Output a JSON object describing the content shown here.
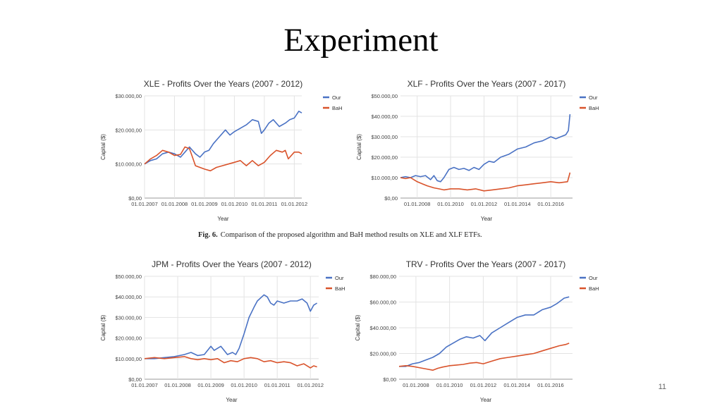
{
  "slide": {
    "title": "Experiment",
    "caption_label": "Fig. 6.",
    "caption_text": "Comparison of the proposed algorithm and BaH method results on XLE and XLF ETFs.",
    "page_number": "11"
  },
  "colors": {
    "our": "#4a72c4",
    "bah": "#d9532b",
    "grid": "#e3e3e3"
  },
  "chart_data": [
    {
      "type": "line",
      "title": "XLE - Profits Over the Years  (2007 - 2012)",
      "xlabel": "Year",
      "ylabel": "Capital ($)",
      "ylim": [
        0,
        30000
      ],
      "yticks": [
        "$0,00",
        "$10.000,00",
        "$20.000,00",
        "$30.000,00"
      ],
      "xlim": [
        2007.0,
        2012.25
      ],
      "xticks": [
        "01.01.2007",
        "01.01.2008",
        "01.01.2009",
        "01.01.2010",
        "01.01.2011",
        "01.01.2012"
      ],
      "grid": true,
      "legend": "top-right",
      "series": [
        {
          "name": "Our",
          "color": "#4a72c4",
          "x": [
            2007.0,
            2007.2,
            2007.4,
            2007.6,
            2007.8,
            2008.0,
            2008.2,
            2008.35,
            2008.5,
            2008.7,
            2008.85,
            2009.0,
            2009.15,
            2009.3,
            2009.5,
            2009.7,
            2009.85,
            2010.0,
            2010.2,
            2010.4,
            2010.6,
            2010.8,
            2010.9,
            2011.0,
            2011.15,
            2011.3,
            2011.5,
            2011.7,
            2011.85,
            2012.0,
            2012.15,
            2012.25
          ],
          "y": [
            10000,
            11000,
            11500,
            13000,
            13500,
            13000,
            12000,
            13500,
            15000,
            13000,
            12000,
            13500,
            14000,
            16000,
            18000,
            20000,
            18500,
            19500,
            20500,
            21500,
            23000,
            22500,
            19000,
            20000,
            22000,
            23000,
            21000,
            22000,
            23000,
            23500,
            25500,
            25000
          ]
        },
        {
          "name": "BaH",
          "color": "#d9532b",
          "x": [
            2007.0,
            2007.2,
            2007.4,
            2007.6,
            2007.8,
            2008.0,
            2008.2,
            2008.35,
            2008.5,
            2008.6,
            2008.7,
            2008.85,
            2009.0,
            2009.2,
            2009.4,
            2009.6,
            2009.8,
            2010.0,
            2010.2,
            2010.4,
            2010.6,
            2010.8,
            2011.0,
            2011.2,
            2011.4,
            2011.6,
            2011.7,
            2011.8,
            2012.0,
            2012.15,
            2012.25
          ],
          "y": [
            10000,
            11500,
            12500,
            14000,
            13500,
            12500,
            12800,
            15000,
            14500,
            12000,
            9500,
            9000,
            8500,
            8000,
            9000,
            9500,
            10000,
            10500,
            11000,
            9500,
            11000,
            9500,
            10500,
            12500,
            14000,
            13500,
            14000,
            11500,
            13500,
            13500,
            13000
          ]
        }
      ]
    },
    {
      "type": "line",
      "title": "XLF - Profits Over the Years  (2007 - 2017)",
      "xlabel": "Year",
      "ylabel": "Capital ($)",
      "ylim": [
        0,
        50000
      ],
      "yticks": [
        "$0,00",
        "$10.000,00",
        "$20.000,00",
        "$30.000,00",
        "$40.000,00",
        "$50.000,00"
      ],
      "xlim": [
        2007.0,
        2017.3
      ],
      "xticks": [
        "01.01.2008",
        "01.01.2010",
        "01.01.2012",
        "01.01.2014",
        "01.01.2016"
      ],
      "grid": true,
      "legend": "top-right",
      "series": [
        {
          "name": "Our",
          "color": "#4a72c4",
          "x": [
            2007.0,
            2007.3,
            2007.6,
            2007.9,
            2008.2,
            2008.5,
            2008.8,
            2009.0,
            2009.2,
            2009.4,
            2009.6,
            2009.9,
            2010.2,
            2010.5,
            2010.8,
            2011.1,
            2011.4,
            2011.7,
            2012.0,
            2012.3,
            2012.6,
            2013.0,
            2013.5,
            2014.0,
            2014.5,
            2015.0,
            2015.5,
            2016.0,
            2016.3,
            2016.6,
            2016.9,
            2017.05,
            2017.15
          ],
          "y": [
            10000,
            10500,
            10000,
            11000,
            10500,
            11000,
            9000,
            11000,
            8500,
            8000,
            10000,
            14000,
            15000,
            14000,
            14500,
            13500,
            15000,
            14000,
            16500,
            18000,
            17500,
            20000,
            21500,
            24000,
            25000,
            27000,
            28000,
            30000,
            29000,
            30000,
            31000,
            33000,
            41000
          ]
        },
        {
          "name": "BaH",
          "color": "#d9532b",
          "x": [
            2007.0,
            2007.3,
            2007.6,
            2008.0,
            2008.3,
            2008.6,
            2009.0,
            2009.3,
            2009.6,
            2010.0,
            2010.5,
            2011.0,
            2011.5,
            2012.0,
            2012.5,
            2013.0,
            2013.5,
            2014.0,
            2014.5,
            2015.0,
            2015.5,
            2016.0,
            2016.5,
            2017.0,
            2017.1,
            2017.15
          ],
          "y": [
            10000,
            9500,
            10000,
            8000,
            7000,
            6000,
            5000,
            4500,
            4000,
            4500,
            4500,
            4000,
            4500,
            3500,
            4000,
            4500,
            5000,
            6000,
            6500,
            7000,
            7500,
            8000,
            7500,
            8000,
            11000,
            12500
          ]
        }
      ]
    },
    {
      "type": "line",
      "title": "JPM - Profits Over the Years  (2007 - 2012)",
      "xlabel": "Year",
      "ylabel": "Capital ($)",
      "ylim": [
        0,
        50000
      ],
      "yticks": [
        "$0,00",
        "$10.000,00",
        "$20.000,00",
        "$30.000,00",
        "$40.000,00",
        "$50.000,00"
      ],
      "xlim": [
        2007.0,
        2012.25
      ],
      "xticks": [
        "01.01.2007",
        "01.01.2008",
        "01.01.2009",
        "01.01.2010",
        "01.01.2011",
        "01.01.2012"
      ],
      "grid": true,
      "legend": "top-right",
      "series": [
        {
          "name": "Our",
          "color": "#4a72c4",
          "x": [
            2007.0,
            2007.3,
            2007.6,
            2007.9,
            2008.2,
            2008.4,
            2008.6,
            2008.8,
            2009.0,
            2009.1,
            2009.3,
            2009.5,
            2009.65,
            2009.75,
            2009.85,
            2010.0,
            2010.15,
            2010.3,
            2010.4,
            2010.6,
            2010.7,
            2010.8,
            2010.9,
            2011.0,
            2011.2,
            2011.4,
            2011.6,
            2011.75,
            2011.9,
            2012.0,
            2012.1,
            2012.2
          ],
          "y": [
            10000,
            10000,
            10500,
            11000,
            12000,
            13000,
            11500,
            12000,
            16000,
            14000,
            16000,
            12000,
            13000,
            12000,
            15000,
            22000,
            30000,
            35000,
            38000,
            41000,
            40000,
            37000,
            36000,
            38000,
            37000,
            38000,
            38000,
            39000,
            37000,
            33000,
            36000,
            37000
          ]
        },
        {
          "name": "BaH",
          "color": "#d9532b",
          "x": [
            2007.0,
            2007.3,
            2007.6,
            2007.9,
            2008.2,
            2008.4,
            2008.6,
            2008.8,
            2009.0,
            2009.2,
            2009.4,
            2009.6,
            2009.8,
            2010.0,
            2010.2,
            2010.4,
            2010.6,
            2010.8,
            2011.0,
            2011.2,
            2011.4,
            2011.6,
            2011.8,
            2012.0,
            2012.1,
            2012.2
          ],
          "y": [
            10000,
            10500,
            10000,
            10500,
            11000,
            10000,
            9500,
            10000,
            9500,
            10000,
            8000,
            9000,
            8500,
            10000,
            10500,
            10000,
            8500,
            9000,
            8000,
            8500,
            8000,
            6500,
            7500,
            5500,
            6500,
            6000
          ]
        }
      ]
    },
    {
      "type": "line",
      "title": "TRV - Profits Over the Years  (2007 - 2017)",
      "xlabel": "Year",
      "ylabel": "Capital ($)",
      "ylim": [
        0,
        80000
      ],
      "yticks": [
        "$0,00",
        "$20.000,00",
        "$40.000,00",
        "$60.000,00",
        "$80.000,00"
      ],
      "xlim": [
        2007.0,
        2017.3
      ],
      "xticks": [
        "01.01.2008",
        "01.01.2010",
        "01.01.2012",
        "01.01.2014",
        "01.01.2016"
      ],
      "grid": true,
      "legend": "top-right",
      "series": [
        {
          "name": "Our",
          "color": "#4a72c4",
          "x": [
            2007.0,
            2007.4,
            2007.8,
            2008.2,
            2008.6,
            2009.0,
            2009.4,
            2009.8,
            2010.2,
            2010.6,
            2011.0,
            2011.4,
            2011.8,
            2012.1,
            2012.5,
            2013.0,
            2013.5,
            2014.0,
            2014.5,
            2015.0,
            2015.5,
            2016.0,
            2016.4,
            2016.8,
            2017.1
          ],
          "y": [
            10000,
            10000,
            12000,
            13000,
            15000,
            17000,
            20000,
            25000,
            28000,
            31000,
            33000,
            32000,
            34000,
            30000,
            36000,
            40000,
            44000,
            48000,
            50000,
            50000,
            54000,
            56000,
            59000,
            63000,
            64000
          ]
        },
        {
          "name": "BaH",
          "color": "#d9532b",
          "x": [
            2007.0,
            2007.4,
            2007.8,
            2008.2,
            2008.6,
            2009.0,
            2009.3,
            2009.6,
            2010.0,
            2010.4,
            2010.8,
            2011.2,
            2011.6,
            2012.0,
            2012.5,
            2013.0,
            2013.5,
            2014.0,
            2014.5,
            2015.0,
            2015.5,
            2016.0,
            2016.5,
            2016.9,
            2017.1
          ],
          "y": [
            10000,
            10500,
            10000,
            9000,
            8000,
            7000,
            8500,
            9500,
            10500,
            11000,
            11500,
            12500,
            13000,
            12000,
            14000,
            16000,
            17000,
            18000,
            19000,
            20000,
            22000,
            24000,
            26000,
            27000,
            28000
          ]
        }
      ]
    }
  ]
}
